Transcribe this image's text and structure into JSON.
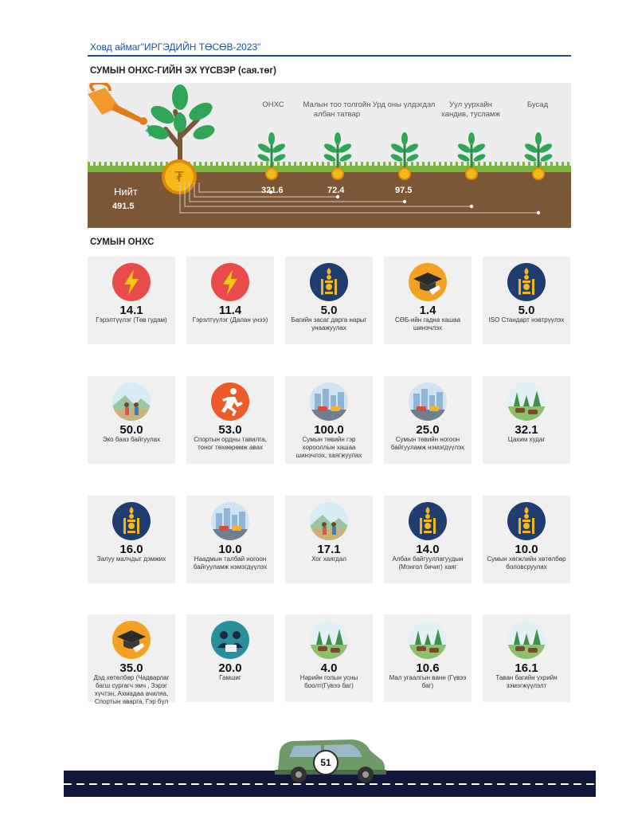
{
  "header": {
    "title": "Ховд аймаг\"ИРГЭДИЙН ТӨСӨВ-2023\""
  },
  "sources": {
    "title": "СУМЫН ОНХС-ГИЙН ЭХ ҮҮСВЭР (сая.төг)",
    "total_label": "Нийт",
    "total_value": "491.5",
    "items": [
      {
        "label": "ОНХС",
        "value": "321.6"
      },
      {
        "label": "Малын тоо толгойн албан татвар",
        "value": "72.4"
      },
      {
        "label": "Урд оны үлдэгдэл",
        "value": "97.5"
      },
      {
        "label": "Уул уурхайн хандив, тусламж",
        "value": ""
      },
      {
        "label": "Бусад",
        "value": ""
      }
    ]
  },
  "projects": {
    "title": "СУМЫН ОНХС",
    "cards": [
      {
        "value": "14.1",
        "label": "Гэрэлтүүлэг   (Төв гудам)",
        "icon": "lightning-icon"
      },
      {
        "value": "11.4",
        "label": "Гэрэлтүүлэг   (Далан үнээ)",
        "icon": "lightning-icon"
      },
      {
        "value": "5.0",
        "label": "Багийн засаг дарга нарыг унаажуулах",
        "icon": "soyombo-emblem-icon"
      },
      {
        "value": "1.4",
        "label": "СӨБ-ийн гадна хашаа шинэчлэх",
        "icon": "graduation-cap-icon"
      },
      {
        "value": "5.0",
        "label": "ISO Стандарт нэвтрүүлэх",
        "icon": "soyombo-emblem-icon"
      },
      {
        "value": "50.0",
        "label": "Эко бааз байгуулах",
        "icon": "camping-people-icon"
      },
      {
        "value": "53.0",
        "label": "Спортын ордны тавилга, тоног төхөөрөмж авах",
        "icon": "running-person-icon"
      },
      {
        "value": "100.0",
        "label": "Сумын төвийн гэр хорооллын хашаа шинэчлэх, хаягжуулах",
        "icon": "city-icon"
      },
      {
        "value": "25.0",
        "label": "Сумын төвийн ногоон байгууламж нэмэгдүүлэх",
        "icon": "city-icon"
      },
      {
        "value": "32.1",
        "label": "Цахим худаг",
        "icon": "cattle-pasture-icon"
      },
      {
        "value": "16.0",
        "label": "Залуу малчдыг дэмжих",
        "icon": "soyombo-emblem-icon"
      },
      {
        "value": "10.0",
        "label": "Наадмын талбай ногоон байгууламж нэмэгдүүлэх",
        "icon": "city-icon"
      },
      {
        "value": "17.1",
        "label": "Хог хаягдал",
        "icon": "camping-people-icon"
      },
      {
        "value": "14.0",
        "label": "Албан байгууллагуудын (Монгол бичиг) хаяг",
        "icon": "soyombo-emblem-icon"
      },
      {
        "value": "10.0",
        "label": "Сумын хөгжлийн хөтөлбөр боловсруулах",
        "icon": "soyombo-emblem-icon"
      },
      {
        "value": "35.0",
        "label": "Дэд хөтөлбөр (Чадварлаг багш сургагч эмч , Зэрэг хүчтэн, Ахмадаа ачиляа, Спортын аварга, Гэр бүл",
        "icon": "graduation-cap-icon"
      },
      {
        "value": "20.0",
        "label": "Гамшиг",
        "icon": "people-group-icon"
      },
      {
        "value": "4.0",
        "label": "Нарийн голын усны боолт(Гүвээ баг)",
        "icon": "cattle-pasture-icon"
      },
      {
        "value": "10.6",
        "label": "Мал угаалгын ванн (Гүвээ баг)",
        "icon": "cattle-pasture-icon"
      },
      {
        "value": "16.1",
        "label": "Таван багийн үхрийн зэмэгжүүлэлт",
        "icon": "cattle-pasture-icon"
      }
    ]
  },
  "footer": {
    "page_number": "51"
  }
}
